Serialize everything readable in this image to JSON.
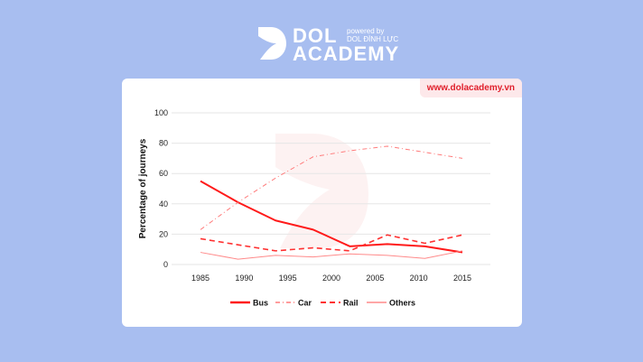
{
  "branding": {
    "logo_top": "DOL",
    "logo_bottom": "ACADEMY",
    "powered_by": "powered by",
    "powered_name": "DOL ĐÌNH LỰC",
    "url": "www.dolacademy.vn"
  },
  "chart_data": {
    "type": "line",
    "title": "",
    "xlabel": "",
    "ylabel": "Percentage of journeys",
    "xlim": [
      1985,
      2015
    ],
    "ylim": [
      0,
      100
    ],
    "x_ticks": [
      "1985",
      "1990",
      "1995",
      "2000",
      "2005",
      "2010",
      "2015"
    ],
    "y_ticks": [
      "0",
      "20",
      "40",
      "60",
      "80",
      "100"
    ],
    "grid": "horizontal",
    "legend": "bottom",
    "x": [
      1985,
      1989.3,
      1993.6,
      1997.9,
      2002.1,
      2006.4,
      2010.7,
      2015
    ],
    "series": [
      {
        "name": "Bus",
        "values": [
          55,
          41,
          29,
          23,
          12,
          13.5,
          12,
          8
        ],
        "color": "#ff1a1a",
        "style": "solid-thick"
      },
      {
        "name": "Car",
        "values": [
          23,
          41,
          57,
          71,
          75,
          78,
          74,
          70
        ],
        "color": "#ff7b7b",
        "style": "dash-dot"
      },
      {
        "name": "Rail",
        "values": [
          17,
          13,
          9,
          11,
          9,
          19.5,
          14,
          19.5
        ],
        "color": "#ff3030",
        "style": "dashed"
      },
      {
        "name": "Others",
        "values": [
          8,
          3.5,
          6,
          5,
          7,
          6,
          4,
          9
        ],
        "color": "#ff8a8a",
        "style": "solid-thin"
      }
    ]
  }
}
